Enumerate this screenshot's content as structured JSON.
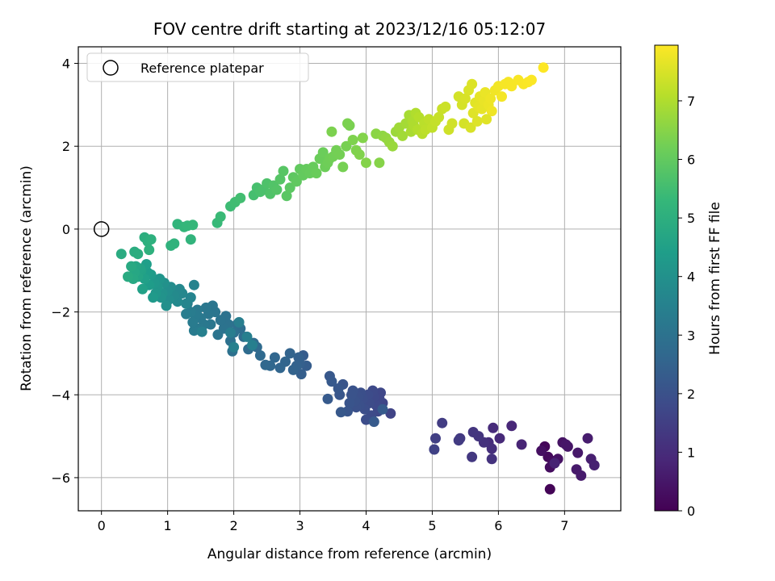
{
  "chart_data": {
    "type": "scatter",
    "title": "FOV centre drift starting at 2023/12/16 05:12:07",
    "xlabel": "Angular distance from reference (arcmin)",
    "ylabel": "Rotation from reference (arcmin)",
    "xlim": [
      -0.35,
      7.85
    ],
    "ylim": [
      -6.8,
      4.4
    ],
    "xticks": [
      0,
      1,
      2,
      3,
      4,
      5,
      6,
      7
    ],
    "yticks": [
      -6,
      -4,
      -2,
      0,
      2,
      4
    ],
    "grid": true,
    "legend": {
      "position": "top-left",
      "entries": [
        "Reference platepar"
      ]
    },
    "reference_point": {
      "x": 0,
      "y": 0,
      "marker": "open-circle",
      "label": "Reference platepar"
    },
    "colorbar": {
      "label": "Hours from first FF file",
      "colormap": "viridis",
      "range": [
        0,
        7.95
      ],
      "ticks": [
        0,
        1,
        2,
        3,
        4,
        5,
        6,
        7
      ]
    },
    "colormap_stops": [
      "#440154",
      "#482878",
      "#3e4989",
      "#31688e",
      "#26828e",
      "#1f9e89",
      "#35b779",
      "#6ece58",
      "#b5de2b",
      "#fde725"
    ],
    "points": [
      [
        6.78,
        -6.28,
        0.08
      ],
      [
        6.7,
        -5.25,
        0.12
      ],
      [
        6.75,
        -5.5,
        0.18
      ],
      [
        6.82,
        -5.6,
        0.22
      ],
      [
        6.78,
        -5.75,
        0.28
      ],
      [
        6.65,
        -5.35,
        0.32
      ],
      [
        6.9,
        -5.55,
        0.36
      ],
      [
        6.97,
        -5.15,
        0.4
      ],
      [
        7.05,
        -5.25,
        0.45
      ],
      [
        7.02,
        -5.2,
        0.48
      ],
      [
        7.2,
        -5.4,
        0.52
      ],
      [
        7.18,
        -5.8,
        0.56
      ],
      [
        7.25,
        -5.95,
        0.6
      ],
      [
        7.35,
        -5.05,
        0.64
      ],
      [
        7.4,
        -5.55,
        0.68
      ],
      [
        7.45,
        -5.7,
        0.72
      ],
      [
        6.85,
        -5.65,
        0.76
      ],
      [
        6.35,
        -5.2,
        0.82
      ],
      [
        6.2,
        -4.75,
        0.88
      ],
      [
        6.02,
        -5.05,
        0.94
      ],
      [
        5.92,
        -4.8,
        1.0
      ],
      [
        5.85,
        -5.15,
        1.05
      ],
      [
        5.9,
        -5.3,
        1.1
      ],
      [
        5.78,
        -5.15,
        1.14
      ],
      [
        5.9,
        -5.55,
        1.18
      ],
      [
        5.7,
        -5.0,
        1.22
      ],
      [
        5.62,
        -4.9,
        1.26
      ],
      [
        5.6,
        -5.5,
        1.3
      ],
      [
        5.42,
        -5.05,
        1.35
      ],
      [
        5.4,
        -5.1,
        1.4
      ],
      [
        5.15,
        -4.68,
        1.45
      ],
      [
        5.05,
        -5.05,
        1.5
      ],
      [
        5.03,
        -5.32,
        1.55
      ],
      [
        4.37,
        -4.45,
        1.62
      ],
      [
        4.25,
        -4.2,
        1.66
      ],
      [
        4.22,
        -3.95,
        1.7
      ],
      [
        4.2,
        -4.1,
        1.72
      ],
      [
        4.18,
        -4.4,
        1.74
      ],
      [
        4.15,
        -4.25,
        1.76
      ],
      [
        4.12,
        -4.05,
        1.78
      ],
      [
        4.1,
        -3.9,
        1.8
      ],
      [
        4.08,
        -4.5,
        1.82
      ],
      [
        4.05,
        -4.2,
        1.84
      ],
      [
        4.03,
        -4.0,
        1.86
      ],
      [
        4.0,
        -4.6,
        1.88
      ],
      [
        3.98,
        -4.35,
        1.9
      ],
      [
        3.95,
        -4.1,
        1.92
      ],
      [
        3.92,
        -3.95,
        1.94
      ],
      [
        3.9,
        -4.25,
        1.96
      ],
      [
        3.88,
        -4.05,
        1.98
      ],
      [
        3.85,
        -4.3,
        2.0
      ],
      [
        3.83,
        -4.15,
        2.02
      ],
      [
        3.8,
        -3.9,
        2.04
      ],
      [
        3.78,
        -4.0,
        2.06
      ],
      [
        3.75,
        -4.2,
        2.08
      ],
      [
        3.72,
        -4.4,
        2.1
      ],
      [
        3.65,
        -3.75,
        2.12
      ],
      [
        3.6,
        -4.0,
        2.14
      ],
      [
        3.58,
        -3.85,
        2.16
      ],
      [
        3.62,
        -4.42,
        2.18
      ],
      [
        3.45,
        -3.55,
        2.2
      ],
      [
        3.48,
        -3.68,
        2.22
      ],
      [
        3.42,
        -4.1,
        2.24
      ],
      [
        4.12,
        -4.65,
        2.26
      ],
      [
        4.25,
        -4.35,
        2.28
      ],
      [
        3.05,
        -3.05,
        2.32
      ],
      [
        3.1,
        -3.3,
        2.35
      ],
      [
        3.02,
        -3.5,
        2.38
      ],
      [
        3.0,
        -3.25,
        2.41
      ],
      [
        2.98,
        -3.1,
        2.44
      ],
      [
        2.95,
        -3.3,
        2.47
      ],
      [
        2.9,
        -3.4,
        2.5
      ],
      [
        2.85,
        -3.0,
        2.53
      ],
      [
        2.78,
        -3.2,
        2.56
      ],
      [
        2.7,
        -3.35,
        2.59
      ],
      [
        2.62,
        -3.1,
        2.62
      ],
      [
        2.55,
        -3.3,
        2.65
      ],
      [
        2.48,
        -3.28,
        2.68
      ],
      [
        2.4,
        -3.05,
        2.71
      ],
      [
        2.35,
        -2.85,
        2.74
      ],
      [
        2.3,
        -2.75,
        2.77
      ],
      [
        2.22,
        -2.9,
        2.8
      ],
      [
        2.15,
        -2.6,
        2.83
      ],
      [
        2.1,
        -2.4,
        2.86
      ],
      [
        2.05,
        -2.3,
        2.89
      ],
      [
        2.0,
        -2.5,
        2.92
      ],
      [
        1.98,
        -2.95,
        2.94
      ],
      [
        1.95,
        -2.7,
        2.96
      ],
      [
        1.92,
        -2.3,
        2.98
      ],
      [
        1.88,
        -2.1,
        3.0
      ],
      [
        1.85,
        -2.4,
        3.02
      ],
      [
        1.8,
        -2.2,
        3.04
      ],
      [
        1.76,
        -2.55,
        3.06
      ],
      [
        1.72,
        -2.0,
        3.08
      ],
      [
        1.68,
        -1.85,
        3.1
      ],
      [
        1.65,
        -2.3,
        3.12
      ],
      [
        1.62,
        -2.05,
        3.14
      ],
      [
        1.58,
        -1.9,
        3.16
      ],
      [
        1.55,
        -2.3,
        3.18
      ],
      [
        1.5,
        -2.15,
        3.2
      ],
      [
        1.48,
        -2.4,
        3.22
      ],
      [
        1.45,
        -1.95,
        3.24
      ],
      [
        1.42,
        -2.1,
        3.26
      ],
      [
        1.4,
        -2.45,
        3.28
      ],
      [
        1.38,
        -2.25,
        3.3
      ],
      [
        1.35,
        -2.0,
        3.32
      ],
      [
        1.3,
        -1.8,
        3.34
      ],
      [
        1.28,
        -2.05,
        3.36
      ],
      [
        1.95,
        -2.5,
        3.38
      ],
      [
        2.08,
        -2.25,
        3.4
      ],
      [
        2.2,
        -2.6,
        3.42
      ],
      [
        2.28,
        -2.8,
        3.44
      ],
      [
        1.52,
        -2.48,
        3.46
      ],
      [
        2.0,
        -2.85,
        3.48
      ],
      [
        1.4,
        -1.35,
        3.55
      ],
      [
        1.35,
        -1.65,
        3.6
      ],
      [
        1.28,
        -1.8,
        3.64
      ],
      [
        1.22,
        -1.55,
        3.68
      ],
      [
        1.18,
        -1.45,
        3.72
      ],
      [
        1.15,
        -1.75,
        3.76
      ],
      [
        1.1,
        -1.6,
        3.8
      ],
      [
        1.05,
        -1.4,
        3.84
      ],
      [
        1.02,
        -1.7,
        3.88
      ],
      [
        1.0,
        -1.5,
        3.92
      ],
      [
        0.98,
        -1.85,
        3.96
      ],
      [
        0.95,
        -1.3,
        4.0
      ],
      [
        0.92,
        -1.55,
        4.04
      ],
      [
        0.9,
        -1.65,
        4.08
      ],
      [
        0.88,
        -1.2,
        4.12
      ],
      [
        0.85,
        -1.4,
        4.16
      ],
      [
        0.82,
        -1.55,
        4.2
      ],
      [
        0.8,
        -1.3,
        4.24
      ],
      [
        0.78,
        -1.65,
        4.28
      ],
      [
        0.75,
        -1.1,
        4.32
      ],
      [
        0.72,
        -1.35,
        4.36
      ],
      [
        0.7,
        -1.05,
        4.4
      ],
      [
        0.68,
        -0.85,
        4.44
      ],
      [
        0.65,
        -1.2,
        4.48
      ],
      [
        0.62,
        -1.45,
        4.52
      ],
      [
        0.6,
        -1.0,
        4.56
      ],
      [
        0.58,
        -0.95,
        4.6
      ],
      [
        0.55,
        -1.15,
        4.64
      ],
      [
        0.52,
        -0.9,
        4.68
      ],
      [
        0.5,
        -1.05,
        4.72
      ],
      [
        0.48,
        -1.2,
        4.76
      ],
      [
        0.45,
        -0.9,
        4.8
      ],
      [
        0.4,
        -1.15,
        4.84
      ],
      [
        0.3,
        -0.6,
        4.88
      ],
      [
        0.5,
        -0.55,
        4.92
      ],
      [
        0.55,
        -0.6,
        4.95
      ],
      [
        0.65,
        -0.2,
        4.98
      ],
      [
        0.7,
        -0.3,
        5.01
      ],
      [
        0.75,
        -0.25,
        5.04
      ],
      [
        0.72,
        -0.5,
        5.07
      ],
      [
        1.05,
        -0.4,
        5.1
      ],
      [
        1.1,
        -0.35,
        5.13
      ],
      [
        1.35,
        -0.25,
        5.16
      ],
      [
        1.15,
        0.12,
        5.19
      ],
      [
        1.25,
        0.05,
        5.22
      ],
      [
        1.3,
        0.08,
        5.25
      ],
      [
        1.38,
        0.1,
        5.28
      ],
      [
        1.75,
        0.15,
        5.33
      ],
      [
        1.8,
        0.3,
        5.38
      ],
      [
        1.95,
        0.55,
        5.44
      ],
      [
        2.02,
        0.65,
        5.48
      ],
      [
        2.1,
        0.75,
        5.52
      ],
      [
        2.3,
        0.82,
        5.56
      ],
      [
        2.35,
        1.0,
        5.6
      ],
      [
        2.4,
        0.9,
        5.63
      ],
      [
        2.45,
        0.95,
        5.66
      ],
      [
        2.5,
        1.1,
        5.69
      ],
      [
        2.55,
        0.85,
        5.72
      ],
      [
        2.6,
        1.05,
        5.75
      ],
      [
        2.65,
        0.95,
        5.78
      ],
      [
        2.7,
        1.2,
        5.81
      ],
      [
        2.75,
        1.4,
        5.84
      ],
      [
        2.8,
        0.8,
        5.87
      ],
      [
        2.85,
        1.0,
        5.9
      ],
      [
        2.9,
        1.25,
        5.93
      ],
      [
        2.95,
        1.15,
        5.96
      ],
      [
        3.0,
        1.45,
        5.99
      ],
      [
        3.05,
        1.3,
        6.02
      ],
      [
        3.1,
        1.45,
        6.04
      ],
      [
        3.15,
        1.35,
        6.06
      ],
      [
        3.2,
        1.5,
        6.08
      ],
      [
        3.25,
        1.35,
        6.1
      ],
      [
        3.3,
        1.7,
        6.12
      ],
      [
        3.35,
        1.85,
        6.14
      ],
      [
        3.38,
        1.5,
        6.16
      ],
      [
        3.42,
        1.6,
        6.18
      ],
      [
        3.45,
        1.7,
        6.2
      ],
      [
        3.5,
        1.75,
        6.22
      ],
      [
        3.55,
        1.9,
        6.24
      ],
      [
        3.6,
        1.8,
        6.26
      ],
      [
        3.65,
        1.5,
        6.28
      ],
      [
        3.7,
        2.0,
        6.3
      ],
      [
        3.75,
        2.5,
        6.32
      ],
      [
        3.72,
        2.55,
        6.34
      ],
      [
        3.48,
        2.35,
        6.36
      ],
      [
        3.8,
        2.15,
        6.38
      ],
      [
        3.85,
        1.9,
        6.4
      ],
      [
        3.9,
        1.8,
        6.42
      ],
      [
        3.95,
        2.2,
        6.44
      ],
      [
        4.0,
        1.6,
        6.46
      ],
      [
        4.2,
        1.6,
        6.48
      ],
      [
        4.15,
        2.3,
        6.55
      ],
      [
        4.25,
        2.25,
        6.6
      ],
      [
        4.3,
        2.2,
        6.64
      ],
      [
        4.35,
        2.1,
        6.68
      ],
      [
        4.4,
        2.0,
        6.72
      ],
      [
        4.45,
        2.35,
        6.76
      ],
      [
        4.5,
        2.45,
        6.8
      ],
      [
        4.55,
        2.25,
        6.83
      ],
      [
        4.6,
        2.55,
        6.86
      ],
      [
        4.65,
        2.75,
        6.89
      ],
      [
        4.68,
        2.35,
        6.92
      ],
      [
        4.7,
        2.6,
        6.95
      ],
      [
        4.72,
        2.5,
        6.98
      ],
      [
        4.75,
        2.8,
        7.01
      ],
      [
        4.78,
        2.4,
        7.04
      ],
      [
        4.8,
        2.7,
        7.07
      ],
      [
        4.85,
        2.3,
        7.1
      ],
      [
        4.88,
        2.55,
        7.13
      ],
      [
        4.9,
        2.4,
        7.16
      ],
      [
        4.95,
        2.65,
        7.19
      ],
      [
        5.0,
        2.45,
        7.22
      ],
      [
        5.05,
        2.6,
        7.25
      ],
      [
        5.1,
        2.7,
        7.28
      ],
      [
        5.15,
        2.9,
        7.31
      ],
      [
        5.2,
        2.95,
        7.34
      ],
      [
        5.25,
        2.4,
        7.37
      ],
      [
        5.3,
        2.55,
        7.4
      ],
      [
        5.4,
        3.2,
        7.43
      ],
      [
        5.45,
        3.0,
        7.46
      ],
      [
        5.5,
        3.15,
        7.49
      ],
      [
        5.55,
        3.35,
        7.52
      ],
      [
        5.6,
        3.5,
        7.55
      ],
      [
        5.62,
        2.8,
        7.58
      ],
      [
        5.65,
        3.05,
        7.61
      ],
      [
        5.7,
        2.95,
        7.64
      ],
      [
        5.72,
        3.2,
        7.66
      ],
      [
        5.75,
        2.9,
        7.68
      ],
      [
        5.78,
        3.1,
        7.7
      ],
      [
        5.8,
        3.3,
        7.72
      ],
      [
        5.85,
        3.0,
        7.74
      ],
      [
        5.88,
        3.15,
        7.76
      ],
      [
        5.9,
        2.85,
        7.78
      ],
      [
        5.95,
        3.35,
        7.8
      ],
      [
        6.0,
        3.45,
        7.82
      ],
      [
        6.05,
        3.2,
        7.84
      ],
      [
        6.1,
        3.5,
        7.86
      ],
      [
        6.15,
        3.55,
        7.87
      ],
      [
        6.2,
        3.45,
        7.88
      ],
      [
        6.3,
        3.6,
        7.89
      ],
      [
        6.38,
        3.5,
        7.9
      ],
      [
        6.45,
        3.55,
        7.91
      ],
      [
        6.5,
        3.6,
        7.92
      ],
      [
        6.68,
        3.9,
        7.95
      ],
      [
        5.48,
        2.55,
        7.45
      ],
      [
        5.58,
        2.45,
        7.5
      ],
      [
        5.68,
        2.6,
        7.56
      ],
      [
        5.82,
        2.65,
        7.6
      ]
    ]
  }
}
